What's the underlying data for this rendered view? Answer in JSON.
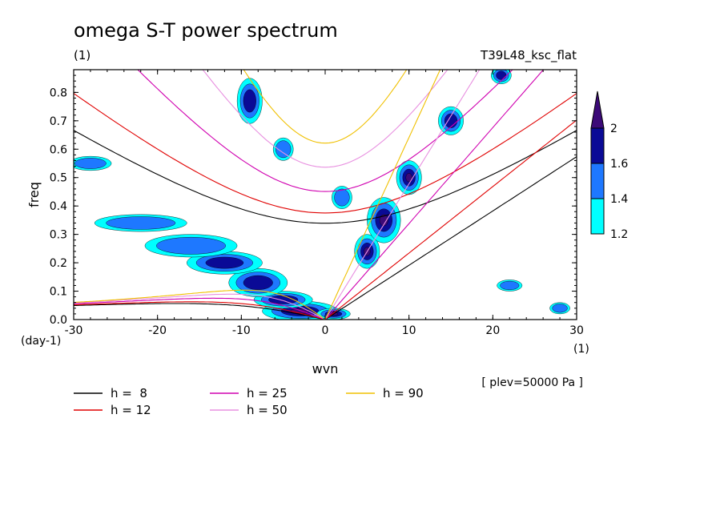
{
  "chart_data": {
    "type": "heatmap",
    "title": "omega S-T power spectrum",
    "subtitle_left": "(1)",
    "subtitle_right": "T39L48_ksc_flat",
    "xlabel": "wvn",
    "ylabel": "freq",
    "x_unit": "(1)",
    "y_unit": "(day-1)",
    "annotation": "[ plev=50000 Pa ]",
    "xlim": [
      -30,
      30
    ],
    "ylim": [
      0,
      0.88
    ],
    "x_ticks": [
      -30,
      -20,
      -10,
      0,
      10,
      20,
      30
    ],
    "x_tick_labels": [
      "-30",
      "-20",
      "-10",
      "0",
      "10",
      "20",
      "30"
    ],
    "y_ticks": [
      0,
      0.1,
      0.2,
      0.3,
      0.4,
      0.5,
      0.6,
      0.7,
      0.8
    ],
    "y_tick_labels": [
      "0.0",
      "0.1",
      "0.2",
      "0.3",
      "0.4",
      "0.5",
      "0.6",
      "0.7",
      "0.8"
    ],
    "colorbar": {
      "levels": [
        1.2,
        1.4,
        1.6,
        2
      ],
      "labels": [
        "1.2",
        "1.4",
        "1.6",
        "2"
      ],
      "colors": [
        "#00ffff",
        "#1e78ff",
        "#0a0a96",
        "#3c0a78"
      ]
    },
    "blobs": [
      {
        "x": -3,
        "y": 0.03,
        "rx": 4.5,
        "ry": 0.035,
        "level": 3
      },
      {
        "x": -5,
        "y": 0.07,
        "rx": 3.5,
        "ry": 0.03,
        "level": 2
      },
      {
        "x": -8,
        "y": 0.13,
        "rx": 3.5,
        "ry": 0.05,
        "level": 2
      },
      {
        "x": -12,
        "y": 0.2,
        "rx": 4.5,
        "ry": 0.04,
        "level": 2
      },
      {
        "x": -16,
        "y": 0.26,
        "rx": 5.5,
        "ry": 0.04,
        "level": 1
      },
      {
        "x": -22,
        "y": 0.34,
        "rx": 5.5,
        "ry": 0.03,
        "level": 1
      },
      {
        "x": 1,
        "y": 0.02,
        "rx": 2,
        "ry": 0.02,
        "level": 3
      },
      {
        "x": 5,
        "y": 0.24,
        "rx": 1.5,
        "ry": 0.06,
        "level": 3
      },
      {
        "x": 7,
        "y": 0.35,
        "rx": 2,
        "ry": 0.08,
        "level": 3
      },
      {
        "x": 10,
        "y": 0.5,
        "rx": 1.5,
        "ry": 0.06,
        "level": 3
      },
      {
        "x": 15,
        "y": 0.7,
        "rx": 1.5,
        "ry": 0.05,
        "level": 2
      },
      {
        "x": 21,
        "y": 0.86,
        "rx": 1.2,
        "ry": 0.03,
        "level": 2
      },
      {
        "x": -9,
        "y": 0.77,
        "rx": 1.5,
        "ry": 0.08,
        "level": 2
      },
      {
        "x": -5,
        "y": 0.6,
        "rx": 1.2,
        "ry": 0.04,
        "level": 1
      },
      {
        "x": 2,
        "y": 0.43,
        "rx": 1.2,
        "ry": 0.04,
        "level": 1
      },
      {
        "x": -28,
        "y": 0.55,
        "rx": 2.5,
        "ry": 0.025,
        "level": 1
      },
      {
        "x": 22,
        "y": 0.12,
        "rx": 1.5,
        "ry": 0.02,
        "level": 1
      },
      {
        "x": 28,
        "y": 0.04,
        "rx": 1.2,
        "ry": 0.02,
        "level": 1
      }
    ],
    "series": [
      {
        "name": "h =  8",
        "h": 8,
        "color": "#000000"
      },
      {
        "name": "h = 12",
        "h": 12,
        "color": "#e00000"
      },
      {
        "name": "h = 25",
        "h": 25,
        "color": "#d000b0"
      },
      {
        "name": "h = 50",
        "h": 50,
        "color": "#e890e0"
      },
      {
        "name": "h = 90",
        "h": 90,
        "color": "#f0c000"
      }
    ],
    "legend_position": "bottom-left"
  }
}
